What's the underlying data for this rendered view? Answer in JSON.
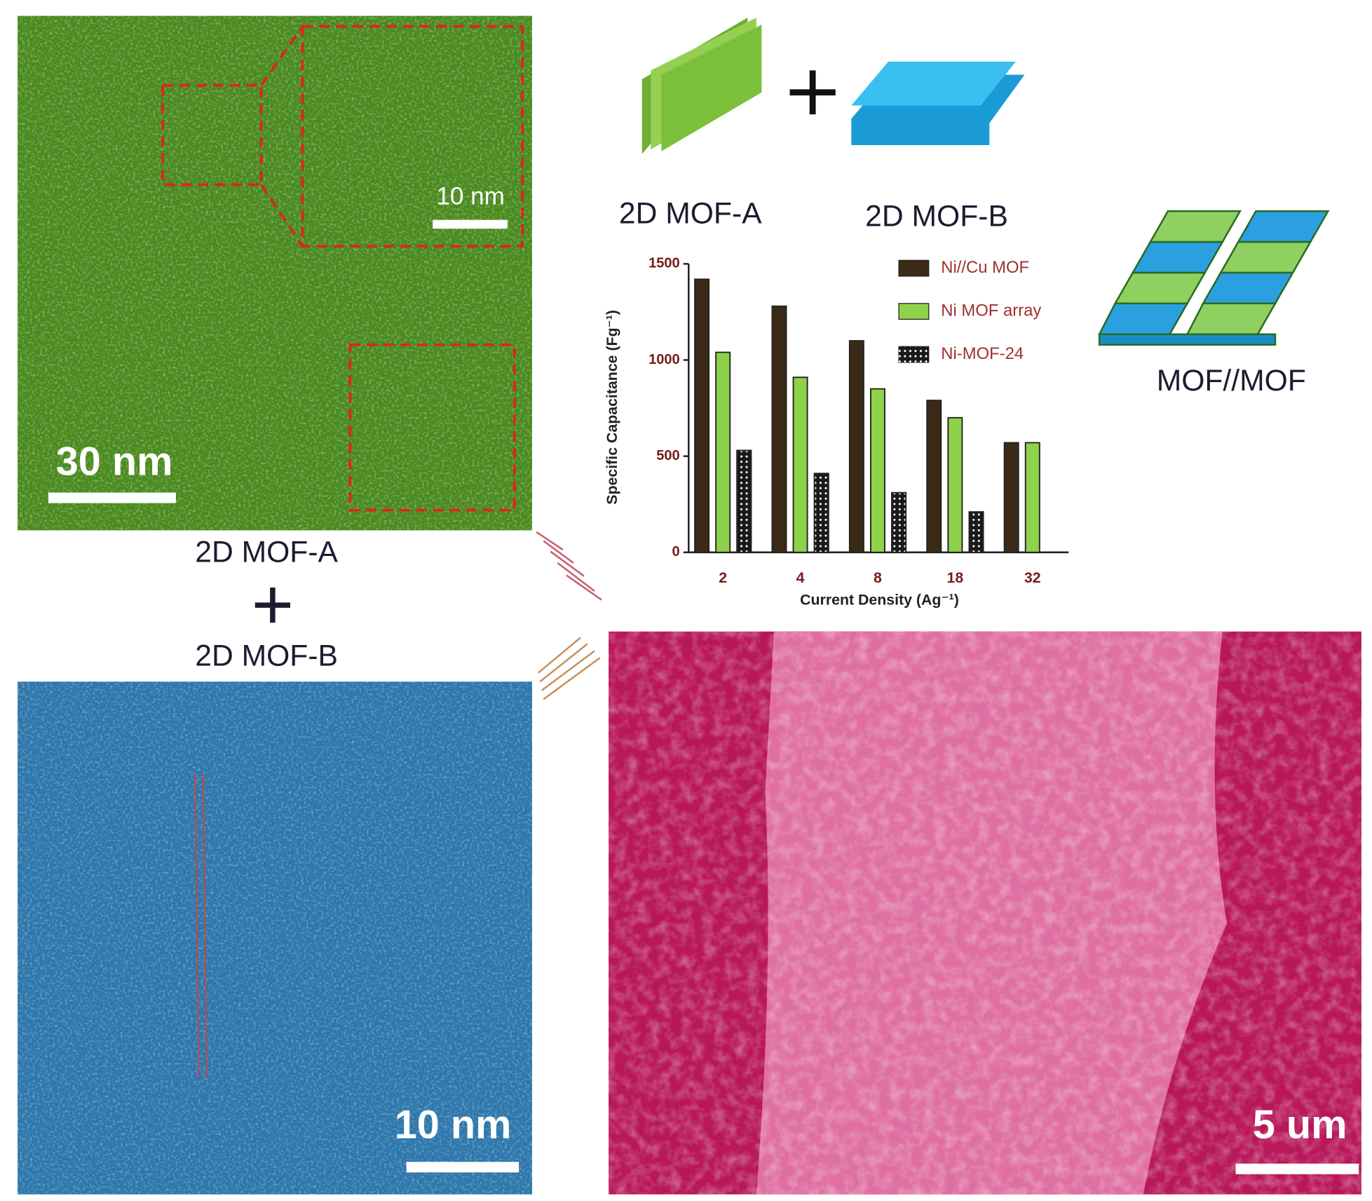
{
  "panels": {
    "tem_a": {
      "inset_scale": "10 nm",
      "scale": "30 nm"
    },
    "labels": {
      "a": "2D MOF-A",
      "b": "2D MOF-B"
    },
    "tem_b": {
      "scale": "10 nm"
    },
    "sem": {
      "scale": "5 um"
    },
    "schematic": {
      "a": "2D MOF-A",
      "b": "2D MOF-B",
      "combined": "MOF//MOF"
    }
  },
  "chart_data": {
    "type": "bar",
    "x_label": "Current Density (Ag⁻¹)",
    "y_label": "Specific Capacitance (Fg⁻¹)",
    "categories": [
      "2",
      "4",
      "8",
      "18",
      "32"
    ],
    "series": [
      {
        "name": "Ni//Cu MOF",
        "color": "#3b2a17",
        "values": [
          1420,
          1280,
          1100,
          790,
          570
        ]
      },
      {
        "name": "Ni MOF array",
        "color": "#8ed14a",
        "values": [
          1040,
          910,
          850,
          700,
          570
        ]
      },
      {
        "name": "Ni-MOF-24",
        "color": "#1a1a1a",
        "values": [
          530,
          410,
          310,
          210,
          null
        ]
      }
    ],
    "ylim": [
      0,
      1500
    ],
    "yticks": [
      0,
      500,
      1000,
      1500
    ],
    "grid": false
  }
}
